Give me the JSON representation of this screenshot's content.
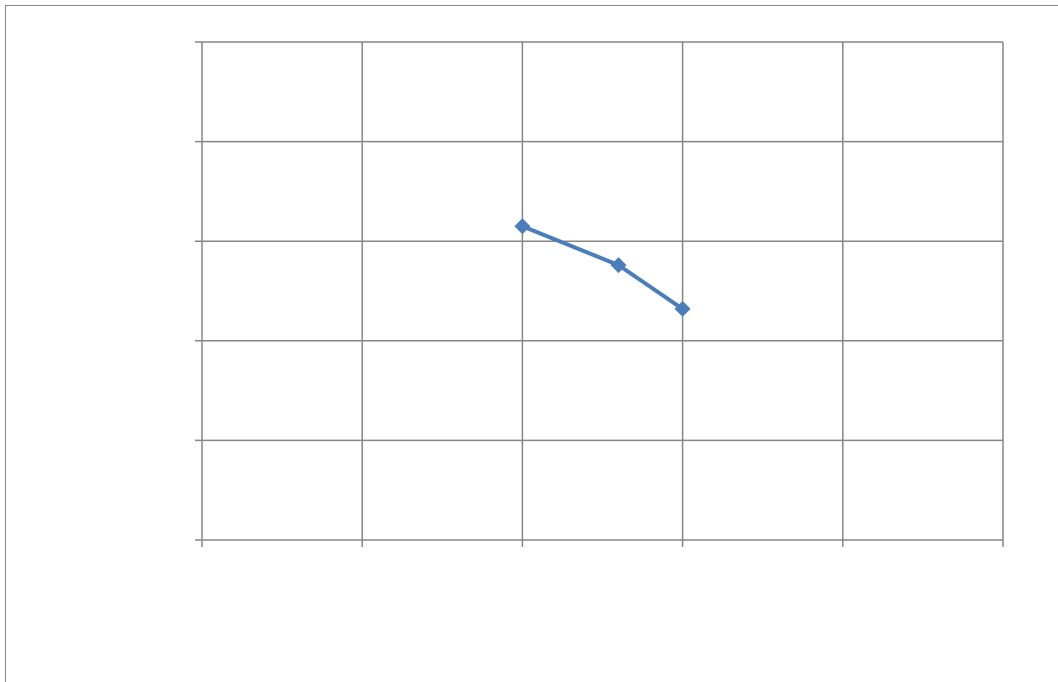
{
  "chart_data": {
    "type": "line",
    "x": [
      2,
      2.6,
      3
    ],
    "values": [
      3.15,
      2.76,
      2.32
    ],
    "color": "#4a7ebb",
    "xlim": [
      0,
      5
    ],
    "xticks": [
      0,
      1,
      2,
      3,
      4,
      5
    ],
    "ylim": [
      0,
      5
    ],
    "yticks": [
      0,
      1,
      2,
      3,
      4,
      5
    ],
    "grid": true
  }
}
